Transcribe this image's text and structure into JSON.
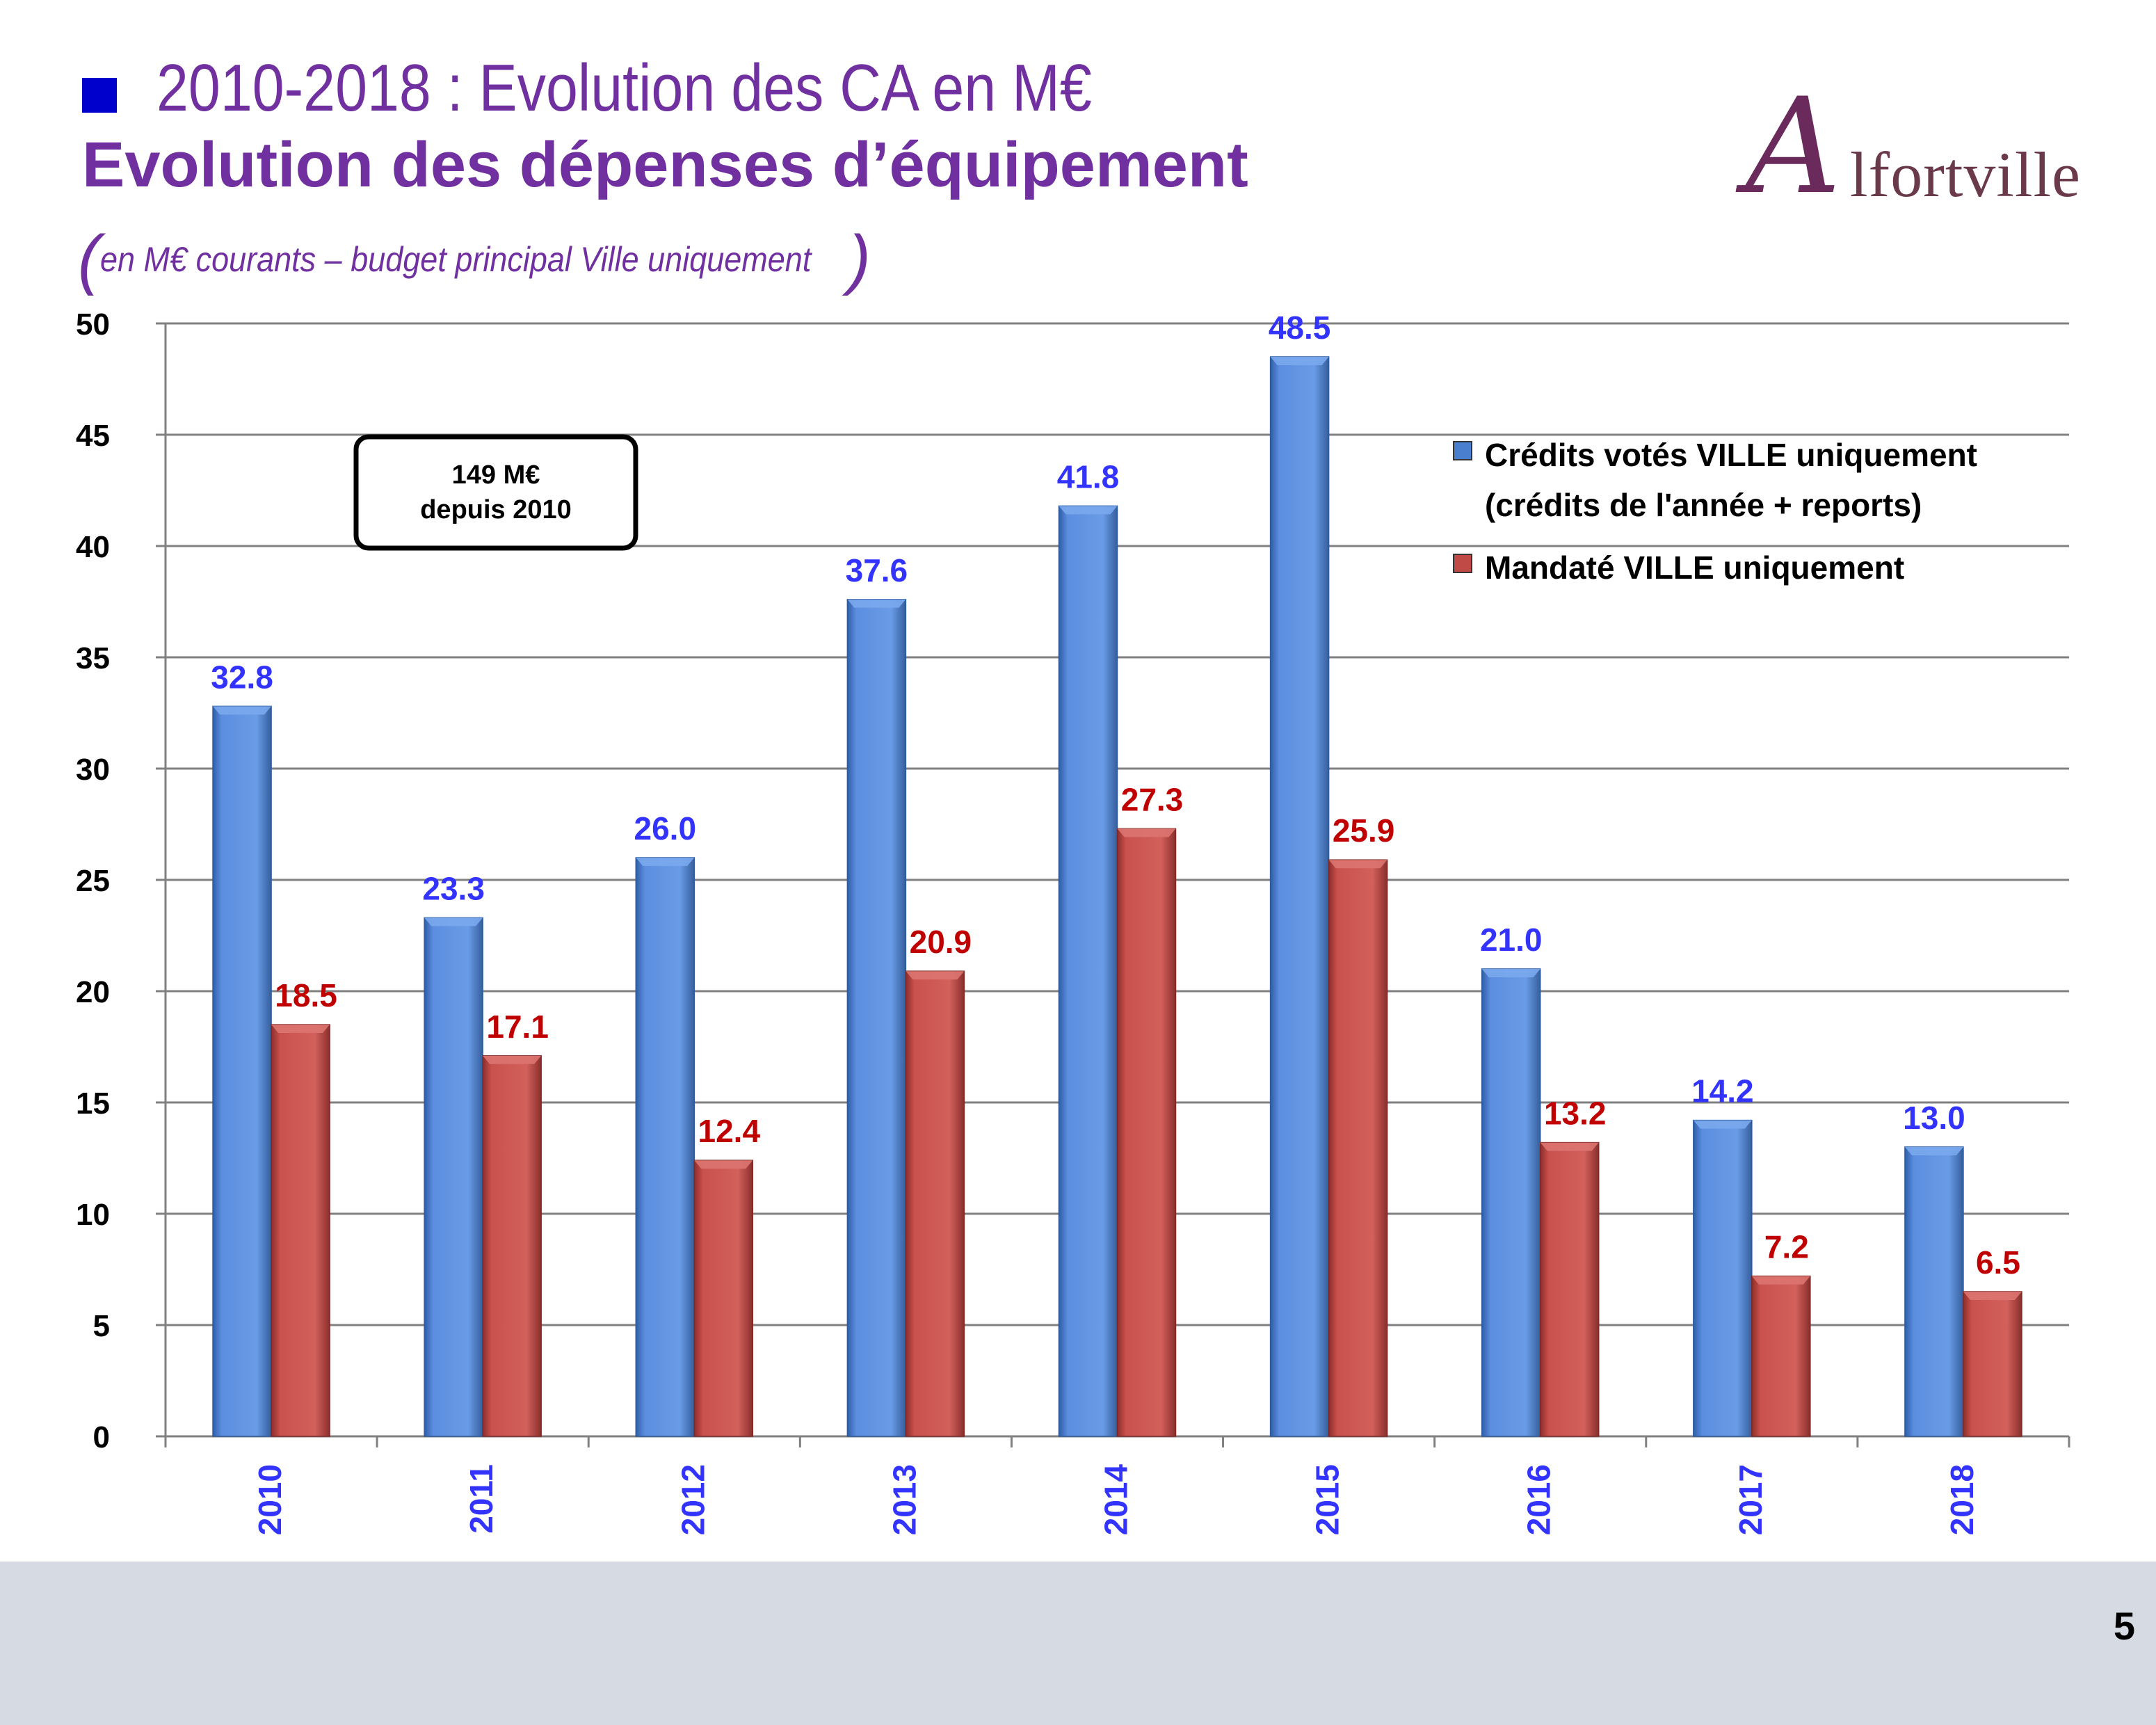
{
  "header": {
    "title_line1": "2010-2018 : Evolution des CA en M€",
    "title_line2": "Evolution des dépenses d’équipement",
    "subtitle": "en M€ courants – budget principal Ville uniquement",
    "logo_text": "Alfortville",
    "bullet_color": "#0000cc",
    "title_color": "#7030a0"
  },
  "annotation": {
    "line1": "149 M€",
    "line2": "depuis 2010"
  },
  "chart_data": {
    "type": "bar",
    "categories": [
      "2010",
      "2011",
      "2012",
      "2013",
      "2014",
      "2015",
      "2016",
      "2017",
      "2018"
    ],
    "series": [
      {
        "name": "Crédits votés VILLE uniquement (crédits de l'année + reports)",
        "legend_lines": [
          "Crédits votés VILLE uniquement",
          "(crédits de l'année + reports)"
        ],
        "values": [
          32.8,
          23.3,
          26.0,
          37.6,
          41.8,
          48.5,
          21.0,
          14.2,
          13.0
        ],
        "labels": [
          "32.8",
          "23.3",
          "26.0",
          "37.6",
          "41.8",
          "48.5",
          "21.0",
          "14.2",
          "13.0"
        ],
        "color": "#5b8ee0",
        "label_color": "#3333ff"
      },
      {
        "name": "Mandaté VILLE uniquement",
        "legend_lines": [
          "Mandaté VILLE uniquement"
        ],
        "values": [
          18.5,
          17.1,
          12.4,
          20.9,
          27.3,
          25.9,
          13.2,
          7.2,
          6.5
        ],
        "labels": [
          "18.5",
          "17.1",
          "12.4",
          "20.9",
          "27.3",
          "25.9",
          "13.2",
          "7.2",
          "6.5"
        ],
        "color": "#c9524e",
        "label_color": "#c00000"
      }
    ],
    "yticks": [
      "0",
      "5",
      "10",
      "15",
      "20",
      "25",
      "30",
      "35",
      "40",
      "45",
      "50"
    ],
    "ylim": [
      0,
      50
    ],
    "grid": true,
    "legend_position": "top-right",
    "category_label_color": "#3333ff"
  },
  "footer": {
    "page_number": "5"
  }
}
